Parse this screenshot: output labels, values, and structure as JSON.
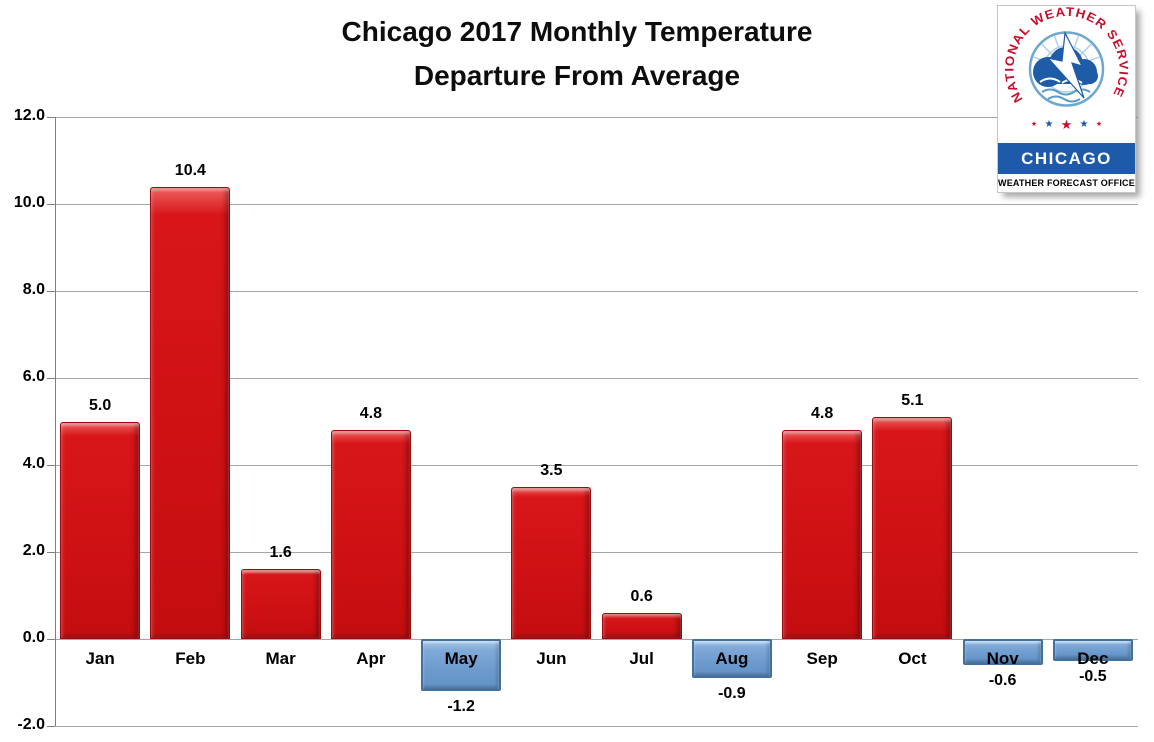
{
  "title": {
    "line1": "Chicago 2017 Monthly Temperature",
    "line2": "Departure From Average"
  },
  "chart_data": {
    "type": "bar",
    "title": "Chicago 2017 Monthly Temperature Departure From Average",
    "categories": [
      "Jan",
      "Feb",
      "Mar",
      "Apr",
      "May",
      "Jun",
      "Jul",
      "Aug",
      "Sep",
      "Oct",
      "Nov",
      "Dec"
    ],
    "values": [
      5.0,
      10.4,
      1.6,
      4.8,
      -1.2,
      3.5,
      0.6,
      -0.9,
      4.8,
      5.1,
      -0.6,
      -0.5
    ],
    "value_labels": [
      "5.0",
      "10.4",
      "1.6",
      "4.8",
      "-1.2",
      "3.5",
      "0.6",
      "-0.9",
      "4.8",
      "5.1",
      "-0.6",
      "-0.5"
    ],
    "xlabel": "",
    "ylabel": "",
    "ylim": [
      -2.0,
      12.0
    ],
    "ytick_interval": 2.0,
    "yticks": [
      "12.0",
      "10.0",
      "8.0",
      "6.0",
      "4.0",
      "2.0",
      "0.0",
      "-2.0"
    ],
    "grid": "horizontal",
    "legend": "none",
    "positive_color": "#cf1114",
    "negative_color": "#6d9bce",
    "negative_border_color": "#41719c",
    "gridline_color": "#a6a6a6"
  },
  "logo": {
    "arc_text": "NATIONAL WEATHER SERVICE",
    "office": "CHICAGO",
    "subtitle": "WEATHER FORECAST OFFICE",
    "colors": {
      "red": "#c8102e",
      "blue": "#1d5aa9",
      "light_blue": "#6fa8ce"
    }
  }
}
